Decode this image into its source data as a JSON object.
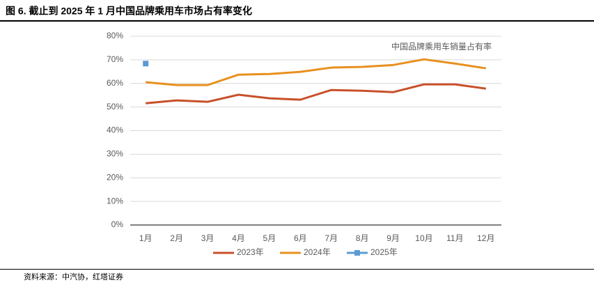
{
  "chart_data": {
    "type": "line",
    "title": "图 6. 截止到 2025 年 1 月中国品牌乘用车市场占有率变化",
    "annotation": "中国品牌乘用车销量占有率",
    "source": "资料来源：中汽协，红塔证券",
    "categories": [
      "1月",
      "2月",
      "3月",
      "4月",
      "5月",
      "6月",
      "7月",
      "8月",
      "9月",
      "10月",
      "11月",
      "12月"
    ],
    "series": [
      {
        "name": "2023年",
        "color": "#c8502a",
        "values": [
          51.6,
          52.8,
          52.2,
          55.2,
          53.7,
          53.1,
          57.2,
          56.9,
          56.3,
          59.6,
          59.6,
          57.8
        ]
      },
      {
        "name": "2024年",
        "color": "#e8901e",
        "values": [
          60.5,
          59.3,
          59.3,
          63.7,
          64.0,
          64.9,
          66.7,
          67.0,
          67.8,
          70.2,
          68.4,
          66.4
        ]
      },
      {
        "name": "2025年",
        "color": "#5b9bd5",
        "marker": "square",
        "values": [
          68.4,
          null,
          null,
          null,
          null,
          null,
          null,
          null,
          null,
          null,
          null,
          null
        ]
      }
    ],
    "ylim": [
      0,
      80
    ],
    "yticks": [
      {
        "value": 0,
        "label": "0%"
      },
      {
        "value": 10,
        "label": "10%"
      },
      {
        "value": 20,
        "label": "20%"
      },
      {
        "value": 30,
        "label": "30%"
      },
      {
        "value": 40,
        "label": "40%"
      },
      {
        "value": 50,
        "label": "50%"
      },
      {
        "value": 60,
        "label": "60%"
      },
      {
        "value": 70,
        "label": "70%"
      },
      {
        "value": 80,
        "label": "80%"
      }
    ],
    "grid": true,
    "legend": "bottom"
  }
}
